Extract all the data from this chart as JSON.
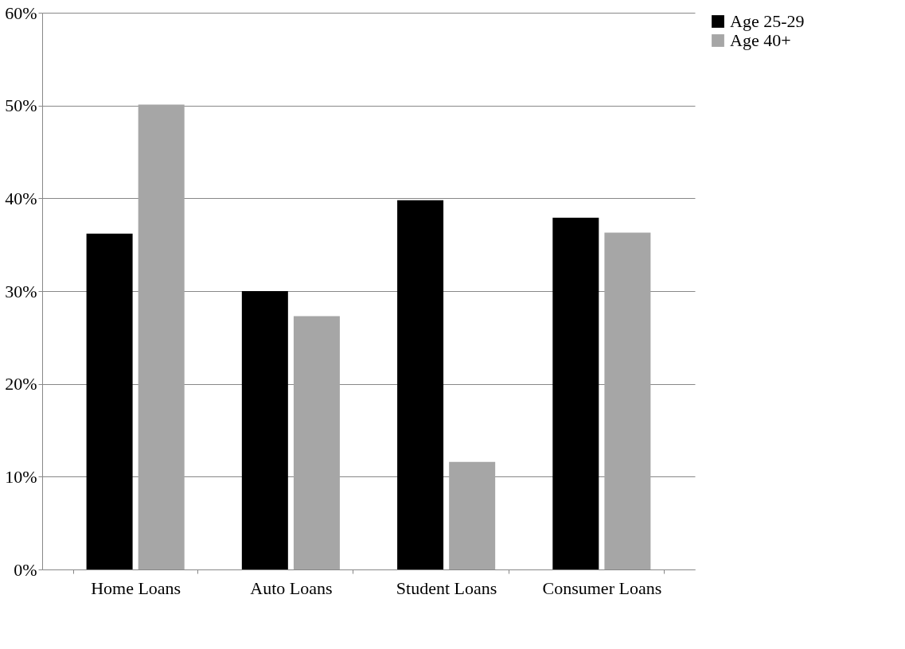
{
  "chart_data": {
    "type": "bar",
    "categories": [
      "Home Loans",
      "Auto Loans",
      "Student Loans",
      "Consumer Loans"
    ],
    "series": [
      {
        "name": "Age 25-29",
        "color": "#000000",
        "values": [
          36.2,
          30.0,
          39.8,
          37.9
        ]
      },
      {
        "name": "Age 40+",
        "color": "#a6a6a6",
        "values": [
          50.1,
          27.3,
          11.6,
          36.3
        ]
      }
    ],
    "ylim": [
      0,
      60
    ],
    "yticks": [
      {
        "value": 0,
        "label": "0%"
      },
      {
        "value": 10,
        "label": "10%"
      },
      {
        "value": 20,
        "label": "20%"
      },
      {
        "value": 30,
        "label": "30%"
      },
      {
        "value": 40,
        "label": "40%"
      },
      {
        "value": 50,
        "label": "50%"
      },
      {
        "value": 60,
        "label": "60%"
      }
    ],
    "grid": "y",
    "legend": "right"
  }
}
